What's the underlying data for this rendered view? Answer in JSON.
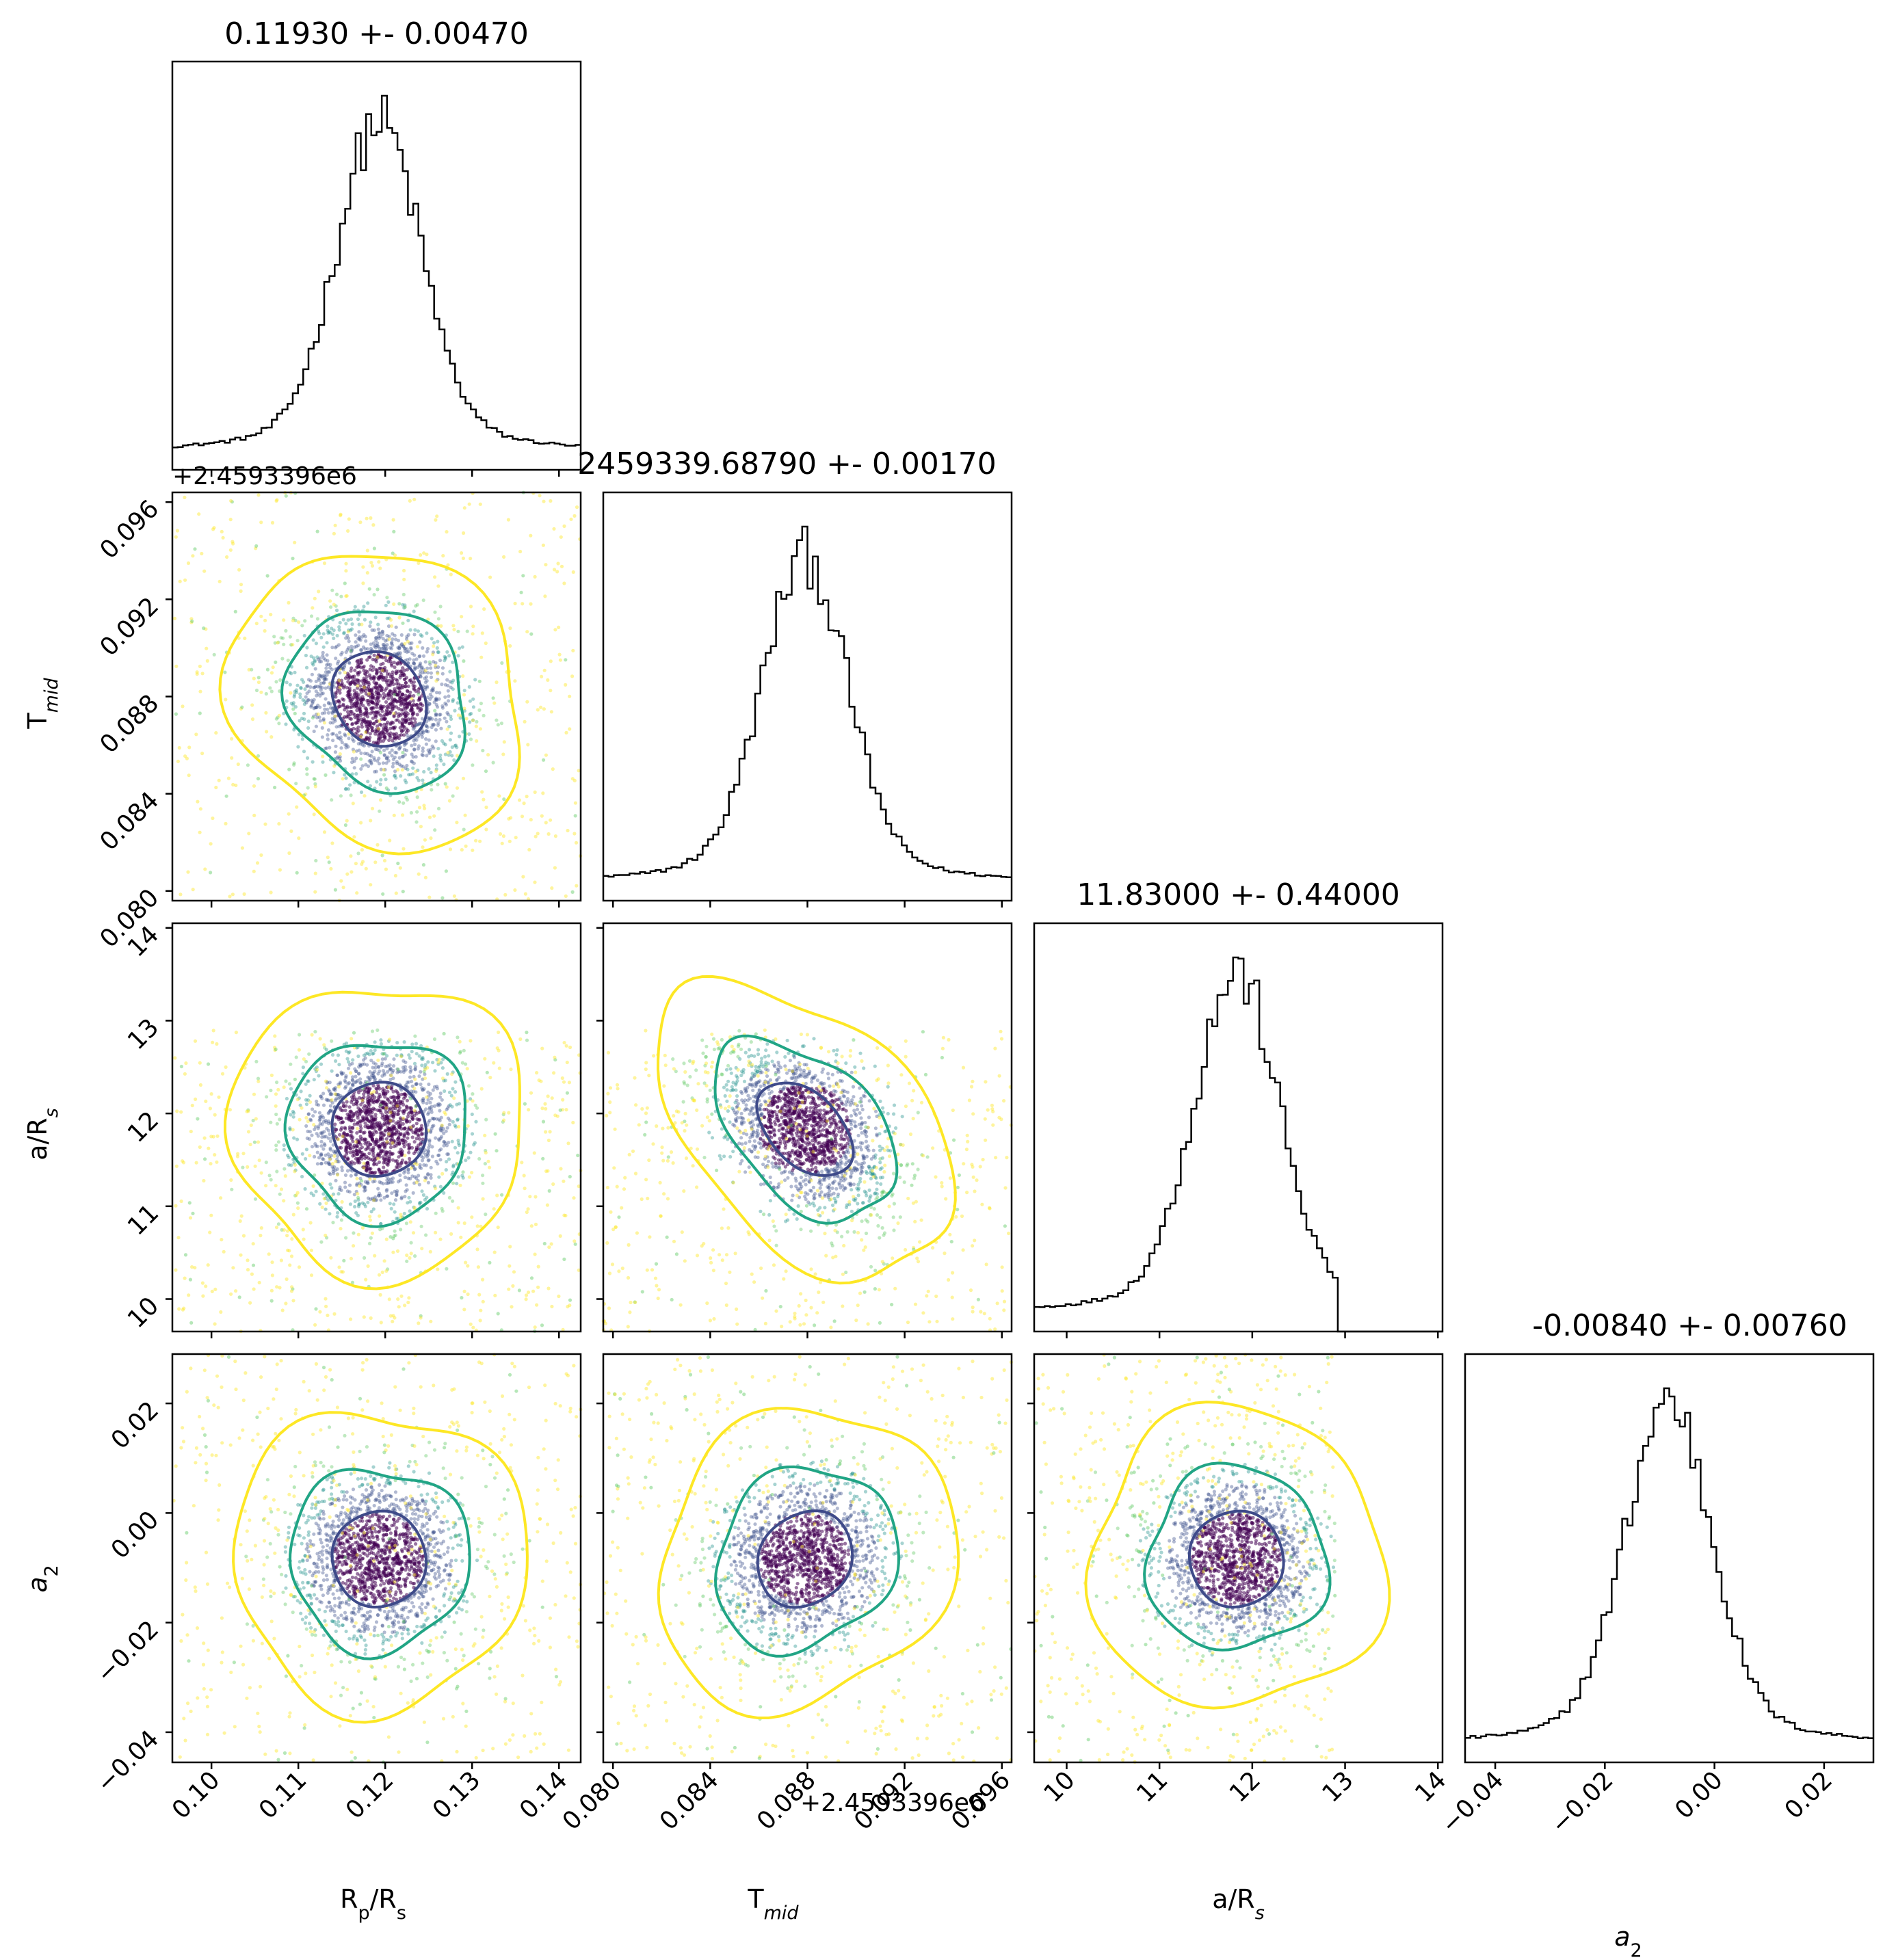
{
  "chart_data": {
    "type": "corner",
    "parameters": [
      {
        "id": "rp",
        "label_main": "R",
        "label_sub": "p",
        "label_suffix": "/R",
        "label_suffix_sub": "s",
        "range": [
          0.0955,
          0.1425
        ],
        "ticks": [
          0.1,
          0.11,
          0.12,
          0.13,
          0.14
        ],
        "tick_labels": [
          "0.10",
          "0.11",
          "0.12",
          "0.13",
          "0.14"
        ],
        "median": 0.1193,
        "sigma": 0.0047
      },
      {
        "id": "tmid",
        "label_main": "T",
        "label_sub": "mid",
        "label_suffix": "",
        "label_suffix_sub": "",
        "offset": "+2.4593396e6",
        "range": [
          0.0796,
          0.0964
        ],
        "ticks": [
          0.08,
          0.084,
          0.088,
          0.092,
          0.096
        ],
        "tick_labels": [
          "0.080",
          "0.084",
          "0.088",
          "0.092",
          "0.096"
        ],
        "median": 0.0879,
        "sigma": 0.0017
      },
      {
        "id": "ars",
        "label_main": "a/R",
        "label_sub": "s",
        "label_suffix": "",
        "label_suffix_sub": "",
        "range": [
          9.65,
          14.05
        ],
        "ticks": [
          10,
          11,
          12,
          13,
          14
        ],
        "tick_labels": [
          "10",
          "11",
          "12",
          "13",
          "14"
        ],
        "median": 11.83,
        "sigma": 0.44
      },
      {
        "id": "a2",
        "label_main": "a",
        "label_sub": "2",
        "label_suffix": "",
        "label_suffix_sub": "",
        "range": [
          -0.0455,
          0.029
        ],
        "ticks": [
          -0.04,
          -0.02,
          0.0,
          0.02
        ],
        "tick_labels": [
          "−0.04",
          "−0.02",
          "0.00",
          "0.02"
        ],
        "median": -0.0084,
        "sigma": 0.0076
      }
    ],
    "titles": [
      "0.11930 +- 0.00470",
      "2459339.68790 +- 0.00170",
      "11.83000 +- 0.44000",
      "-0.00840 +- 0.00760"
    ],
    "contour_levels": [
      "1-sigma",
      "2-sigma",
      "3-sigma"
    ],
    "colors": {
      "histogram": "#000000",
      "contour_inner": "#3e4a89",
      "contour_middle": "#21a585",
      "contour_outer": "#fde725",
      "points_palette": [
        "#440154",
        "#3b518b",
        "#21918c",
        "#5ec962",
        "#fde725"
      ]
    },
    "grid": false,
    "legend": "none"
  }
}
